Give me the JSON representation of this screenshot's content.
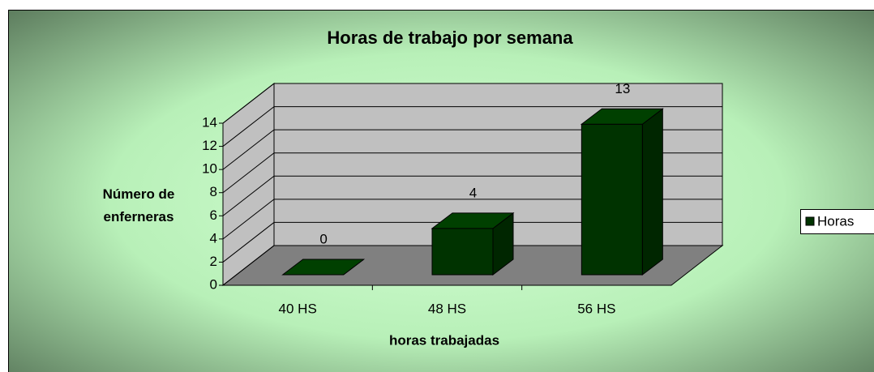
{
  "chart_data": {
    "type": "bar3d",
    "title": "Horas de trabajo por semana",
    "categories": [
      "40 HS",
      "48 HS",
      "56 HS"
    ],
    "series": [
      {
        "name": "Horas",
        "color": "#003300",
        "values": [
          0,
          4,
          13
        ]
      }
    ],
    "ylim": [
      0,
      14
    ],
    "yticks": [
      0,
      2,
      4,
      6,
      8,
      10,
      12,
      14
    ],
    "grid": true,
    "xlabel": "horas trabajadas",
    "ylabel": "Número de enferneras",
    "legend": "right"
  }
}
